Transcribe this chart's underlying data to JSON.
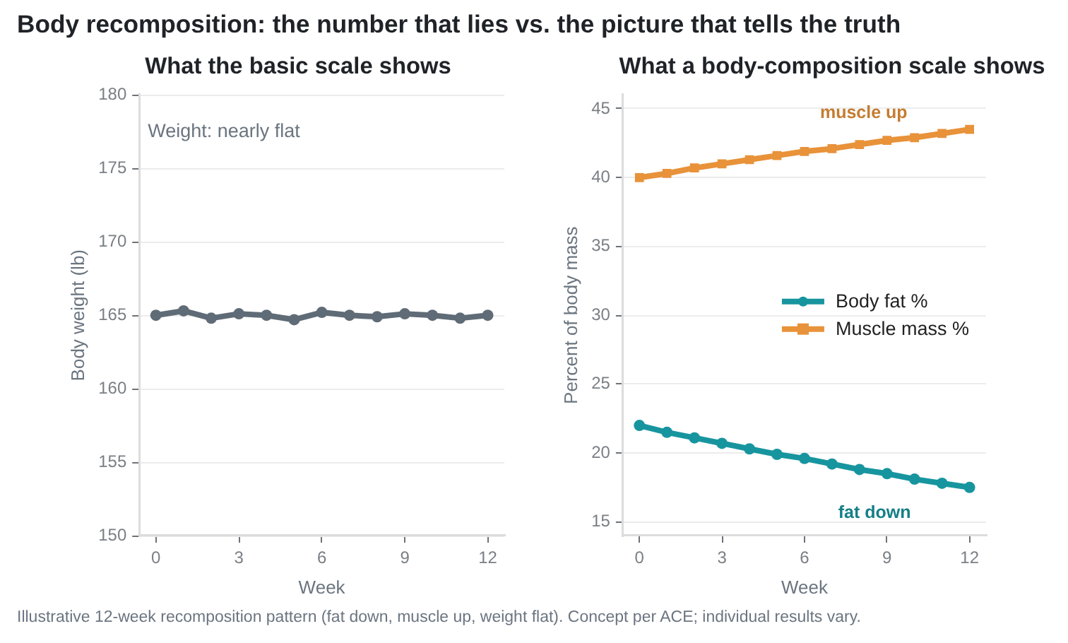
{
  "chart_data": [
    {
      "type": "line",
      "title": "Body recomposition: the number that lies vs. the picture that tells the truth",
      "subtitle": "What the basic scale shows",
      "xlabel": "Week",
      "ylabel": "Body weight (lb)",
      "x": [
        0,
        1,
        2,
        3,
        4,
        5,
        6,
        7,
        8,
        9,
        10,
        11,
        12
      ],
      "series": [
        {
          "color": "#5f6b76",
          "values": [
            165.0,
            165.3,
            164.8,
            165.1,
            165.0,
            164.7,
            165.2,
            165.0,
            164.9,
            165.1,
            165.0,
            164.8,
            165.0
          ]
        }
      ],
      "xlim": [
        -0.6,
        12.6
      ],
      "xticks": [
        0,
        3,
        6,
        9,
        12
      ],
      "ylim": [
        150,
        180
      ],
      "yticks": [
        150,
        155,
        160,
        165,
        170,
        175,
        180
      ],
      "grid": "y",
      "marker": "circle",
      "annotations": [
        "Weight: nearly flat"
      ]
    },
    {
      "type": "line",
      "subtitle": "What a body-composition scale shows",
      "xlabel": "Week",
      "ylabel": "Percent of body mass",
      "x": [
        0,
        1,
        2,
        3,
        4,
        5,
        6,
        7,
        8,
        9,
        10,
        11,
        12
      ],
      "series": [
        {
          "name": "Body fat %",
          "color": "#17959f",
          "marker": "circle",
          "values": [
            22.0,
            21.5,
            21.1,
            20.7,
            20.3,
            19.9,
            19.6,
            19.2,
            18.8,
            18.5,
            18.1,
            17.8,
            17.5
          ]
        },
        {
          "name": "Muscle mass %",
          "color": "#e8923a",
          "marker": "square",
          "values": [
            40.0,
            40.3,
            40.7,
            41.0,
            41.3,
            41.6,
            41.9,
            42.1,
            42.4,
            42.7,
            42.9,
            43.2,
            43.5
          ]
        }
      ],
      "xlim": [
        -0.6,
        12.6
      ],
      "xticks": [
        0,
        3,
        6,
        9,
        12
      ],
      "ylim": [
        14,
        46
      ],
      "yticks": [
        15,
        20,
        25,
        30,
        35,
        40,
        45
      ],
      "grid": "y",
      "legend": "right",
      "annotations": [
        "muscle up",
        "fat down",
        "Illustrative 12-week recomposition pattern (fat down, muscle up, weight flat). Concept per ACE; individual results vary."
      ]
    }
  ]
}
